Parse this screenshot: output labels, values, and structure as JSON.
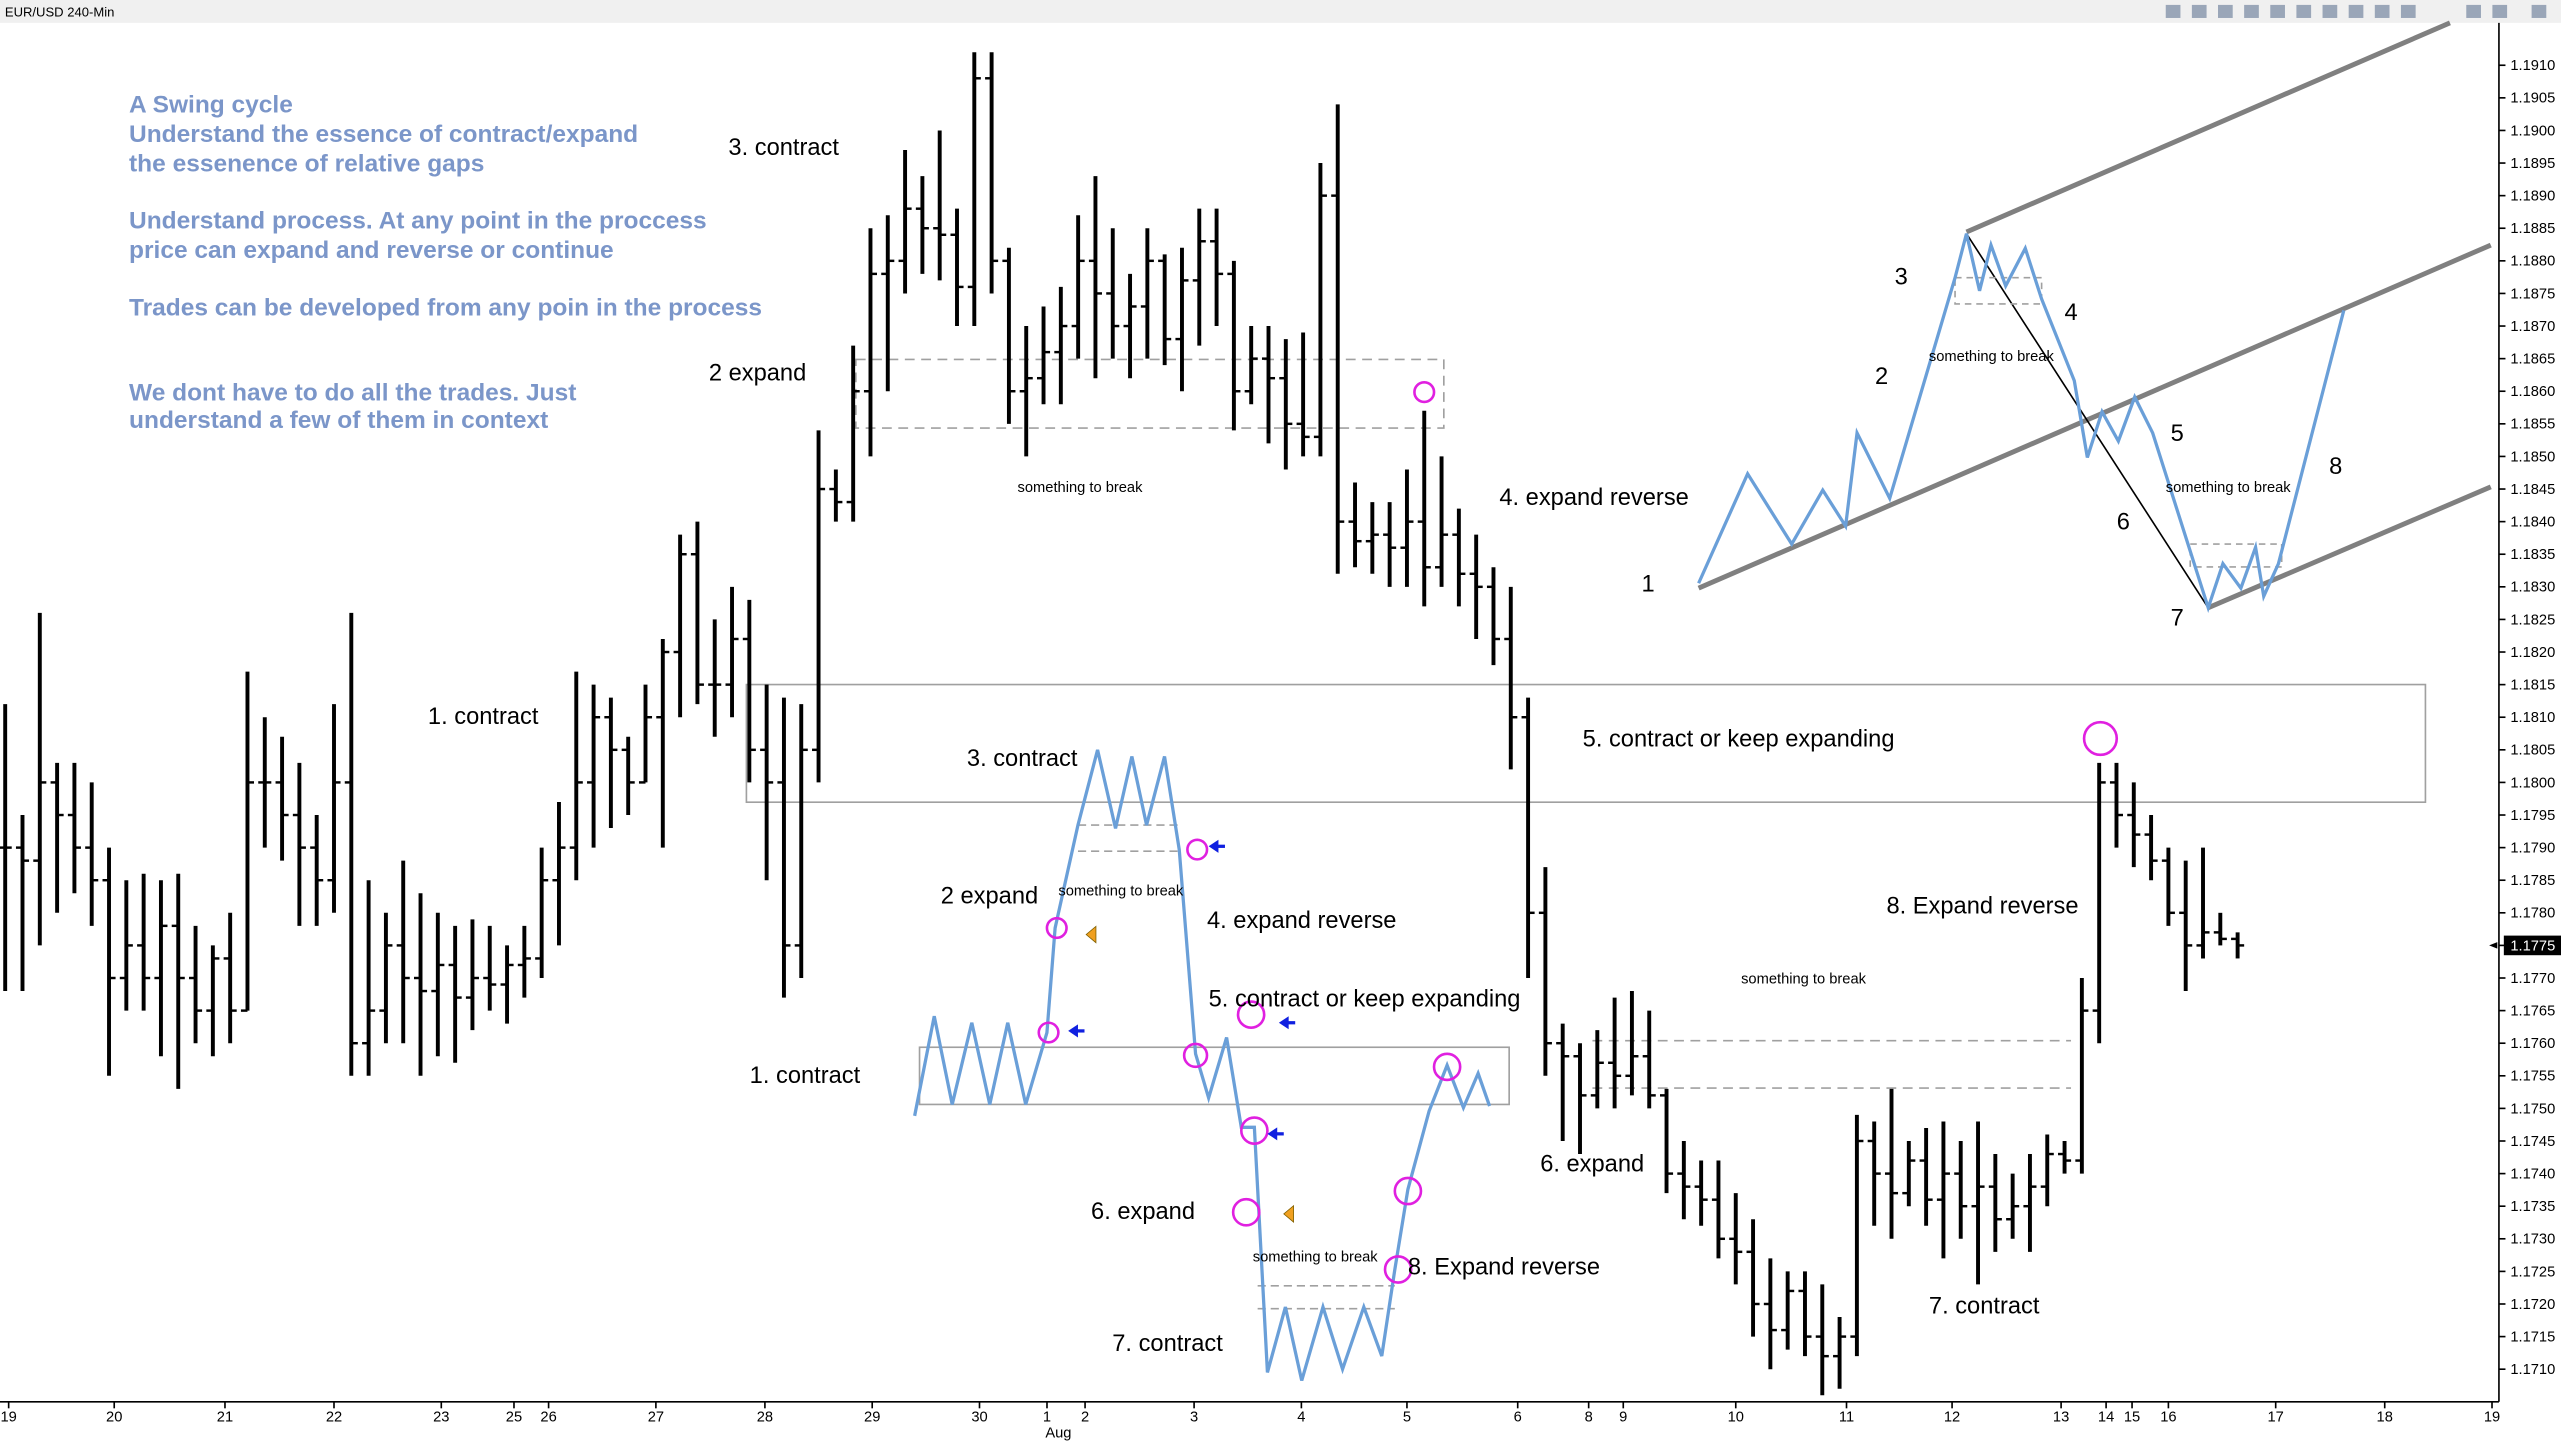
{
  "chart_data": {
    "type": "ohlc",
    "title": "EUR/USD 240-Min",
    "color": "#000000",
    "month_label": "Aug",
    "last_price": 1.1775,
    "xlim": [
      -0.3,
      144.1
    ],
    "xticks": [
      {
        "value": 0.2,
        "label": "19"
      },
      {
        "value": 6.3,
        "label": "20"
      },
      {
        "value": 12.7,
        "label": "21"
      },
      {
        "value": 19,
        "label": "22"
      },
      {
        "value": 25.2,
        "label": "23"
      },
      {
        "value": 29.4,
        "label": "25"
      },
      {
        "value": 31.4,
        "label": "26"
      },
      {
        "value": 37.6,
        "label": "27"
      },
      {
        "value": 43.9,
        "label": "28"
      },
      {
        "value": 50.1,
        "label": "29"
      },
      {
        "value": 56.3,
        "label": "30"
      },
      {
        "value": 60.2,
        "label": "1"
      },
      {
        "value": 62.4,
        "label": "2"
      },
      {
        "value": 68.7,
        "label": "3"
      },
      {
        "value": 74.9,
        "label": "4"
      },
      {
        "value": 81,
        "label": "5"
      },
      {
        "value": 87.4,
        "label": "6"
      },
      {
        "value": 91.5,
        "label": "8"
      },
      {
        "value": 93.5,
        "label": "9"
      },
      {
        "value": 100,
        "label": "10"
      },
      {
        "value": 106.4,
        "label": "11"
      },
      {
        "value": 112.5,
        "label": "12"
      },
      {
        "value": 118.8,
        "label": "13"
      },
      {
        "value": 121.4,
        "label": "14"
      },
      {
        "value": 122.9,
        "label": "15"
      },
      {
        "value": 125,
        "label": "16"
      },
      {
        "value": 131.2,
        "label": "17"
      },
      {
        "value": 137.5,
        "label": "18"
      },
      {
        "value": 143.7,
        "label": "19"
      }
    ],
    "ylim": [
      1.1705,
      1.19165
    ],
    "yticks": [
      {
        "value": 1.171,
        "label": "1.1710"
      },
      1.1715,
      {
        "value": 1.172,
        "label": "1.1720"
      },
      1.1725,
      {
        "value": 1.173,
        "label": "1.1730"
      },
      1.1735,
      {
        "value": 1.174,
        "label": "1.1740"
      },
      1.1745,
      {
        "value": 1.175,
        "label": "1.1750"
      },
      1.1755,
      {
        "value": 1.176,
        "label": "1.1760"
      },
      1.1765,
      {
        "value": 1.177,
        "label": "1.1770"
      },
      1.1775,
      {
        "value": 1.178,
        "label": "1.1780"
      },
      1.1785,
      {
        "value": 1.179,
        "label": "1.1790"
      },
      1.1795,
      {
        "value": 1.18,
        "label": "1.1800"
      },
      1.1805,
      {
        "value": 1.181,
        "label": "1.1810"
      },
      1.1815,
      {
        "value": 1.182,
        "label": "1.1820"
      },
      1.1825,
      {
        "value": 1.183,
        "label": "1.1830"
      },
      1.1835,
      {
        "value": 1.184,
        "label": "1.1840"
      },
      1.1845,
      {
        "value": 1.185,
        "label": "1.1850"
      },
      1.1855,
      {
        "value": 1.186,
        "label": "1.1860"
      },
      1.1865,
      {
        "value": 1.187,
        "label": "1.1870"
      },
      1.1875,
      {
        "value": 1.188,
        "label": "1.1880"
      },
      1.1885,
      {
        "value": 1.189,
        "label": "1.1890"
      },
      1.1895,
      {
        "value": 1.19,
        "label": "1.1900"
      },
      1.1905,
      {
        "value": 1.191,
        "label": "1.1910"
      }
    ],
    "open": [
      1.179,
      1.179,
      1.1788,
      1.18,
      1.1795,
      1.179,
      1.1785,
      1.177,
      1.1775,
      1.177,
      1.1778,
      1.177,
      1.1765,
      1.1773,
      1.1765,
      1.18,
      1.18,
      1.1795,
      1.179,
      1.1785,
      1.18,
      1.176,
      1.1765,
      1.1775,
      1.177,
      1.1768,
      1.1772,
      1.1767,
      1.177,
      1.1769,
      1.1772,
      1.1773,
      1.1785,
      1.179,
      1.18,
      1.181,
      1.1805,
      1.18,
      1.181,
      1.182,
      1.1835,
      1.1815,
      1.1815,
      1.1822,
      1.1805,
      1.18,
      1.1775,
      1.1805,
      1.1845,
      1.1843,
      1.186,
      1.1878,
      1.188,
      1.1888,
      1.1885,
      1.1884,
      1.1876,
      1.1908,
      1.188,
      1.186,
      1.1862,
      1.1866,
      1.187,
      1.188,
      1.1875,
      1.187,
      1.1873,
      1.188,
      1.1868,
      1.1877,
      1.1883,
      1.1878,
      1.186,
      1.1865,
      1.1862,
      1.1855,
      1.1853,
      1.189,
      1.184,
      1.1837,
      1.1838,
      1.1836,
      1.184,
      1.1833,
      1.1838,
      1.1832,
      1.183,
      1.1822,
      1.181,
      1.178,
      1.176,
      1.1758,
      1.1752,
      1.1757,
      1.1755,
      1.1758,
      1.1752,
      1.174,
      1.1738,
      1.1736,
      1.173,
      1.1728,
      1.172,
      1.1716,
      1.1722,
      1.1715,
      1.1712,
      1.1715,
      1.1745,
      1.174,
      1.1737,
      1.1742,
      1.1736,
      1.174,
      1.1735,
      1.1738,
      1.1733,
      1.1735,
      1.1738,
      1.1743,
      1.1742,
      1.1765,
      1.18,
      1.1795,
      1.1792,
      1.1788,
      1.178,
      1.1775,
      1.1777,
      1.1776
    ],
    "high": [
      1.1812,
      1.1795,
      1.1826,
      1.1803,
      1.1803,
      1.18,
      1.179,
      1.1785,
      1.1786,
      1.1785,
      1.1786,
      1.1778,
      1.1775,
      1.178,
      1.1817,
      1.181,
      1.1807,
      1.1803,
      1.1795,
      1.1812,
      1.1826,
      1.1785,
      1.178,
      1.1788,
      1.1783,
      1.178,
      1.1778,
      1.1779,
      1.1778,
      1.1775,
      1.1778,
      1.179,
      1.1797,
      1.1817,
      1.1815,
      1.1813,
      1.1807,
      1.1815,
      1.1822,
      1.1838,
      1.184,
      1.1825,
      1.183,
      1.1828,
      1.1815,
      1.1813,
      1.1812,
      1.1854,
      1.1848,
      1.1867,
      1.1885,
      1.1887,
      1.1897,
      1.1893,
      1.19,
      1.1888,
      1.1912,
      1.1912,
      1.1882,
      1.187,
      1.1873,
      1.1876,
      1.1887,
      1.1893,
      1.1885,
      1.1878,
      1.1885,
      1.1881,
      1.1882,
      1.1888,
      1.1888,
      1.188,
      1.187,
      1.187,
      1.1868,
      1.1869,
      1.1895,
      1.1904,
      1.1846,
      1.1843,
      1.1843,
      1.1848,
      1.1857,
      1.185,
      1.1842,
      1.1838,
      1.1833,
      1.183,
      1.1813,
      1.1787,
      1.1763,
      1.176,
      1.1762,
      1.1767,
      1.1768,
      1.1765,
      1.1753,
      1.1745,
      1.1742,
      1.1742,
      1.1737,
      1.1733,
      1.1727,
      1.1725,
      1.1725,
      1.1723,
      1.1718,
      1.1749,
      1.1748,
      1.1753,
      1.1745,
      1.1747,
      1.1748,
      1.1745,
      1.1748,
      1.1743,
      1.174,
      1.1743,
      1.1746,
      1.1745,
      1.177,
      1.1803,
      1.1803,
      1.18,
      1.1795,
      1.179,
      1.1788,
      1.179,
      1.178,
      1.1777
    ],
    "low": [
      1.1768,
      1.1768,
      1.1775,
      1.178,
      1.1783,
      1.1778,
      1.1755,
      1.1765,
      1.1765,
      1.1758,
      1.1753,
      1.176,
      1.1758,
      1.176,
      1.1765,
      1.179,
      1.1788,
      1.1778,
      1.1778,
      1.178,
      1.1755,
      1.1755,
      1.176,
      1.176,
      1.1755,
      1.1758,
      1.1757,
      1.1762,
      1.1765,
      1.1763,
      1.1767,
      1.177,
      1.1775,
      1.1785,
      1.179,
      1.1793,
      1.1795,
      1.18,
      1.179,
      1.181,
      1.1812,
      1.1807,
      1.181,
      1.18,
      1.1785,
      1.1767,
      1.177,
      1.18,
      1.184,
      1.184,
      1.185,
      1.186,
      1.1875,
      1.1878,
      1.1877,
      1.187,
      1.187,
      1.1875,
      1.1855,
      1.185,
      1.1858,
      1.1858,
      1.1865,
      1.1862,
      1.1865,
      1.1862,
      1.1865,
      1.1864,
      1.186,
      1.1867,
      1.187,
      1.1854,
      1.1858,
      1.1852,
      1.1848,
      1.185,
      1.185,
      1.1832,
      1.1833,
      1.1832,
      1.183,
      1.183,
      1.1827,
      1.183,
      1.1827,
      1.1822,
      1.1818,
      1.1802,
      1.177,
      1.1755,
      1.1745,
      1.1743,
      1.175,
      1.175,
      1.1752,
      1.175,
      1.1737,
      1.1733,
      1.1732,
      1.1727,
      1.1723,
      1.1715,
      1.171,
      1.1713,
      1.1712,
      1.1706,
      1.1707,
      1.1712,
      1.1732,
      1.173,
      1.1735,
      1.1732,
      1.1727,
      1.173,
      1.1723,
      1.1728,
      1.173,
      1.1728,
      1.1735,
      1.174,
      1.174,
      1.176,
      1.179,
      1.1787,
      1.1785,
      1.1778,
      1.1768,
      1.1773,
      1.1775,
      1.1773
    ],
    "close": [
      1.179,
      1.1788,
      1.18,
      1.1795,
      1.179,
      1.1785,
      1.177,
      1.1775,
      1.177,
      1.1778,
      1.177,
      1.1765,
      1.1773,
      1.1765,
      1.18,
      1.18,
      1.1795,
      1.179,
      1.1785,
      1.18,
      1.176,
      1.1765,
      1.1775,
      1.177,
      1.1768,
      1.1772,
      1.1767,
      1.177,
      1.1769,
      1.1772,
      1.1773,
      1.1785,
      1.179,
      1.18,
      1.181,
      1.1805,
      1.18,
      1.181,
      1.182,
      1.1835,
      1.1815,
      1.1815,
      1.1822,
      1.1805,
      1.18,
      1.1775,
      1.1805,
      1.1845,
      1.1843,
      1.186,
      1.1878,
      1.188,
      1.1888,
      1.1885,
      1.1884,
      1.1876,
      1.1908,
      1.188,
      1.186,
      1.1862,
      1.1866,
      1.187,
      1.188,
      1.1875,
      1.187,
      1.1873,
      1.188,
      1.1868,
      1.1877,
      1.1883,
      1.1878,
      1.186,
      1.1865,
      1.1862,
      1.1855,
      1.1853,
      1.189,
      1.184,
      1.1837,
      1.1838,
      1.1836,
      1.184,
      1.1833,
      1.1838,
      1.1832,
      1.183,
      1.1822,
      1.181,
      1.178,
      1.176,
      1.1758,
      1.1752,
      1.1757,
      1.1755,
      1.1758,
      1.1752,
      1.174,
      1.1738,
      1.1736,
      1.173,
      1.1728,
      1.172,
      1.1716,
      1.1722,
      1.1715,
      1.1712,
      1.1715,
      1.1745,
      1.174,
      1.1737,
      1.1742,
      1.1736,
      1.174,
      1.1735,
      1.1738,
      1.1733,
      1.1735,
      1.1738,
      1.1743,
      1.1742,
      1.1765,
      1.18,
      1.1795,
      1.1792,
      1.1788,
      1.178,
      1.1775,
      1.1777,
      1.1776,
      1.1775
    ]
  },
  "notes": [
    "A Swing cycle",
    "Understand the essence of contract/expand",
    "the essenence of relative gaps",
    "Understand process. At any point in the proccess",
    "price can expand and reverse or continue",
    "Trades can be developed from any poin in the process",
    "We dont have to do all the trades. Just",
    "understand a few of them in context",
    "3. contract",
    "2 expand",
    "something to break",
    "4. expand reverse",
    "1. contract",
    "3. contract",
    "5. contract or keep expanding",
    "2 expand",
    "something to break",
    "4. expand reverse",
    "5. contract or keep expanding",
    "1. contract",
    "6. expand",
    "6. expand",
    "something to break",
    "8. Expand reverse",
    "7. contract",
    "7. contract",
    "8. Expand reverse",
    "something to break",
    "3",
    "4",
    "2",
    "something to break",
    "5",
    "something to break",
    "8",
    "6",
    "1",
    "7"
  ]
}
